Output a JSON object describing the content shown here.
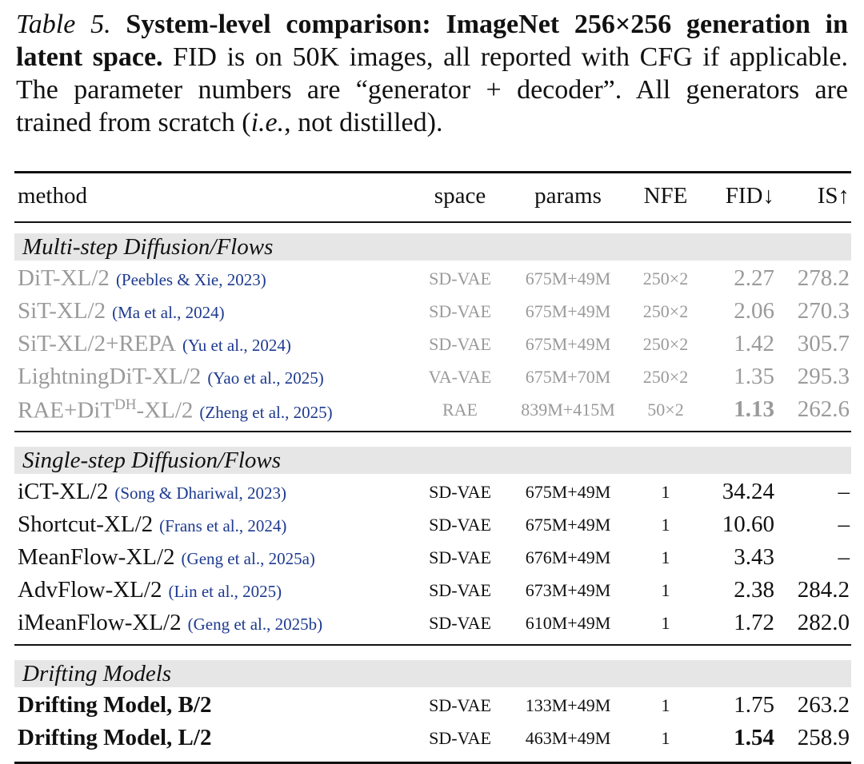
{
  "caption": {
    "label": "Table 5.",
    "bold": "System-level comparison: ImageNet 256×256 generation in latent space.",
    "text": "FID is on 50K images, all reported with CFG if applicable. The parameter numbers are “generator + decoder”. All generators are trained from scratch (",
    "italic": "i.e.",
    "tail": ", not distilled)."
  },
  "table": {
    "headers": [
      "method",
      "space",
      "params",
      "NFE",
      "FID↓",
      "IS↑"
    ],
    "groups": [
      {
        "name": "Multi-step Diffusion/Flows",
        "muted": true,
        "rows": [
          {
            "method": "DiT-XL/2",
            "cite": "(Peebles & Xie, 2023)",
            "space": "SD-VAE",
            "params": "675M+49M",
            "nfe": "250×2",
            "fid": "2.27",
            "is": "278.2"
          },
          {
            "method": "SiT-XL/2",
            "cite": "(Ma et al., 2024)",
            "space": "SD-VAE",
            "params": "675M+49M",
            "nfe": "250×2",
            "fid": "2.06",
            "is": "270.3"
          },
          {
            "method": "SiT-XL/2+REPA",
            "cite": "(Yu et al., 2024)",
            "space": "SD-VAE",
            "params": "675M+49M",
            "nfe": "250×2",
            "fid": "1.42",
            "is": "305.7"
          },
          {
            "method": "LightningDiT-XL/2",
            "cite": "(Yao et al., 2025)",
            "space": "VA-VAE",
            "params": "675M+70M",
            "nfe": "250×2",
            "fid": "1.35",
            "is": "295.3"
          },
          {
            "method": [
              "RAE+DiT",
              "DH",
              "-XL/2"
            ],
            "cite": "(Zheng et al., 2025)",
            "space": "RAE",
            "params": "839M+415M",
            "nfe": "50×2",
            "fid": "1.13",
            "fid_bold": true,
            "is": "262.6"
          }
        ]
      },
      {
        "name": "Single-step Diffusion/Flows",
        "muted": false,
        "rows": [
          {
            "method": "iCT-XL/2",
            "cite": "(Song & Dhariwal, 2023)",
            "space": "SD-VAE",
            "params": "675M+49M",
            "nfe": "1",
            "fid": "34.24",
            "is": "–"
          },
          {
            "method": "Shortcut-XL/2",
            "cite": "(Frans et al., 2024)",
            "space": "SD-VAE",
            "params": "675M+49M",
            "nfe": "1",
            "fid": "10.60",
            "is": "–"
          },
          {
            "method": "MeanFlow-XL/2",
            "cite": "(Geng et al., 2025a)",
            "space": "SD-VAE",
            "params": "676M+49M",
            "nfe": "1",
            "fid": "3.43",
            "is": "–"
          },
          {
            "method": "AdvFlow-XL/2",
            "cite": "(Lin et al., 2025)",
            "space": "SD-VAE",
            "params": "673M+49M",
            "nfe": "1",
            "fid": "2.38",
            "is": "284.2"
          },
          {
            "method": "iMeanFlow-XL/2",
            "cite": "(Geng et al., 2025b)",
            "space": "SD-VAE",
            "params": "610M+49M",
            "nfe": "1",
            "fid": "1.72",
            "is": "282.0"
          }
        ]
      },
      {
        "name": "Drifting Models",
        "muted": false,
        "rows": [
          {
            "method": "Drifting Model, B/2",
            "method_bold": true,
            "space": "SD-VAE",
            "params": "133M+49M",
            "nfe": "1",
            "fid": "1.75",
            "is": "263.2"
          },
          {
            "method": "Drifting Model, L/2",
            "method_bold": true,
            "space": "SD-VAE",
            "params": "463M+49M",
            "nfe": "1",
            "fid": "1.54",
            "fid_bold": true,
            "is": "258.9"
          }
        ]
      }
    ]
  }
}
